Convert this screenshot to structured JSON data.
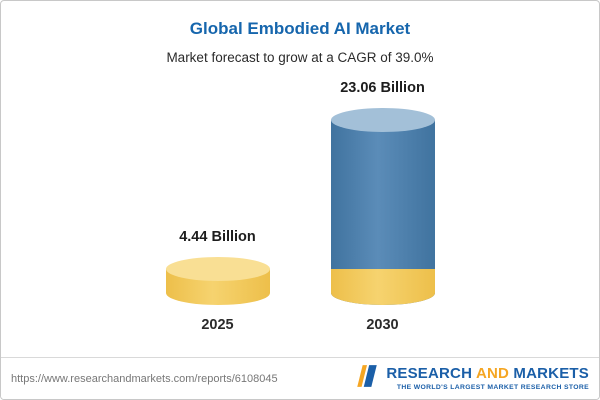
{
  "header": {
    "title": "Global Embodied AI Market",
    "subtitle": "Market forecast to grow at a CAGR of 39.0%"
  },
  "chart_data": {
    "type": "bar",
    "bar_style": "cylinder",
    "title": "Global Embodied AI Market",
    "subtitle": "Market forecast to grow at a CAGR of 39.0%",
    "categories": [
      "2025",
      "2030"
    ],
    "values": [
      4.44,
      23.06
    ],
    "unit": "Billion",
    "value_labels": [
      "4.44 Billion",
      "23.06 Billion"
    ],
    "cagr_percent": 39.0,
    "ylim": [
      0,
      23.06
    ],
    "grid": false,
    "legend": "none",
    "bar_colors": [
      "#f2c55a",
      "#4a7dab"
    ]
  },
  "footer": {
    "url": "https://www.researchandmarkets.com/reports/6108045",
    "logo": {
      "research": "RESEARCH",
      "and": "AND",
      "markets": "MARKETS",
      "tagline": "THE WORLD'S LARGEST MARKET RESEARCH STORE"
    }
  },
  "colors": {
    "title_blue": "#1666ad",
    "bar_yellow": "#f2c55a",
    "bar_blue": "#4a7dab",
    "logo_blue": "#1b5fa8",
    "logo_orange": "#f5a623"
  }
}
